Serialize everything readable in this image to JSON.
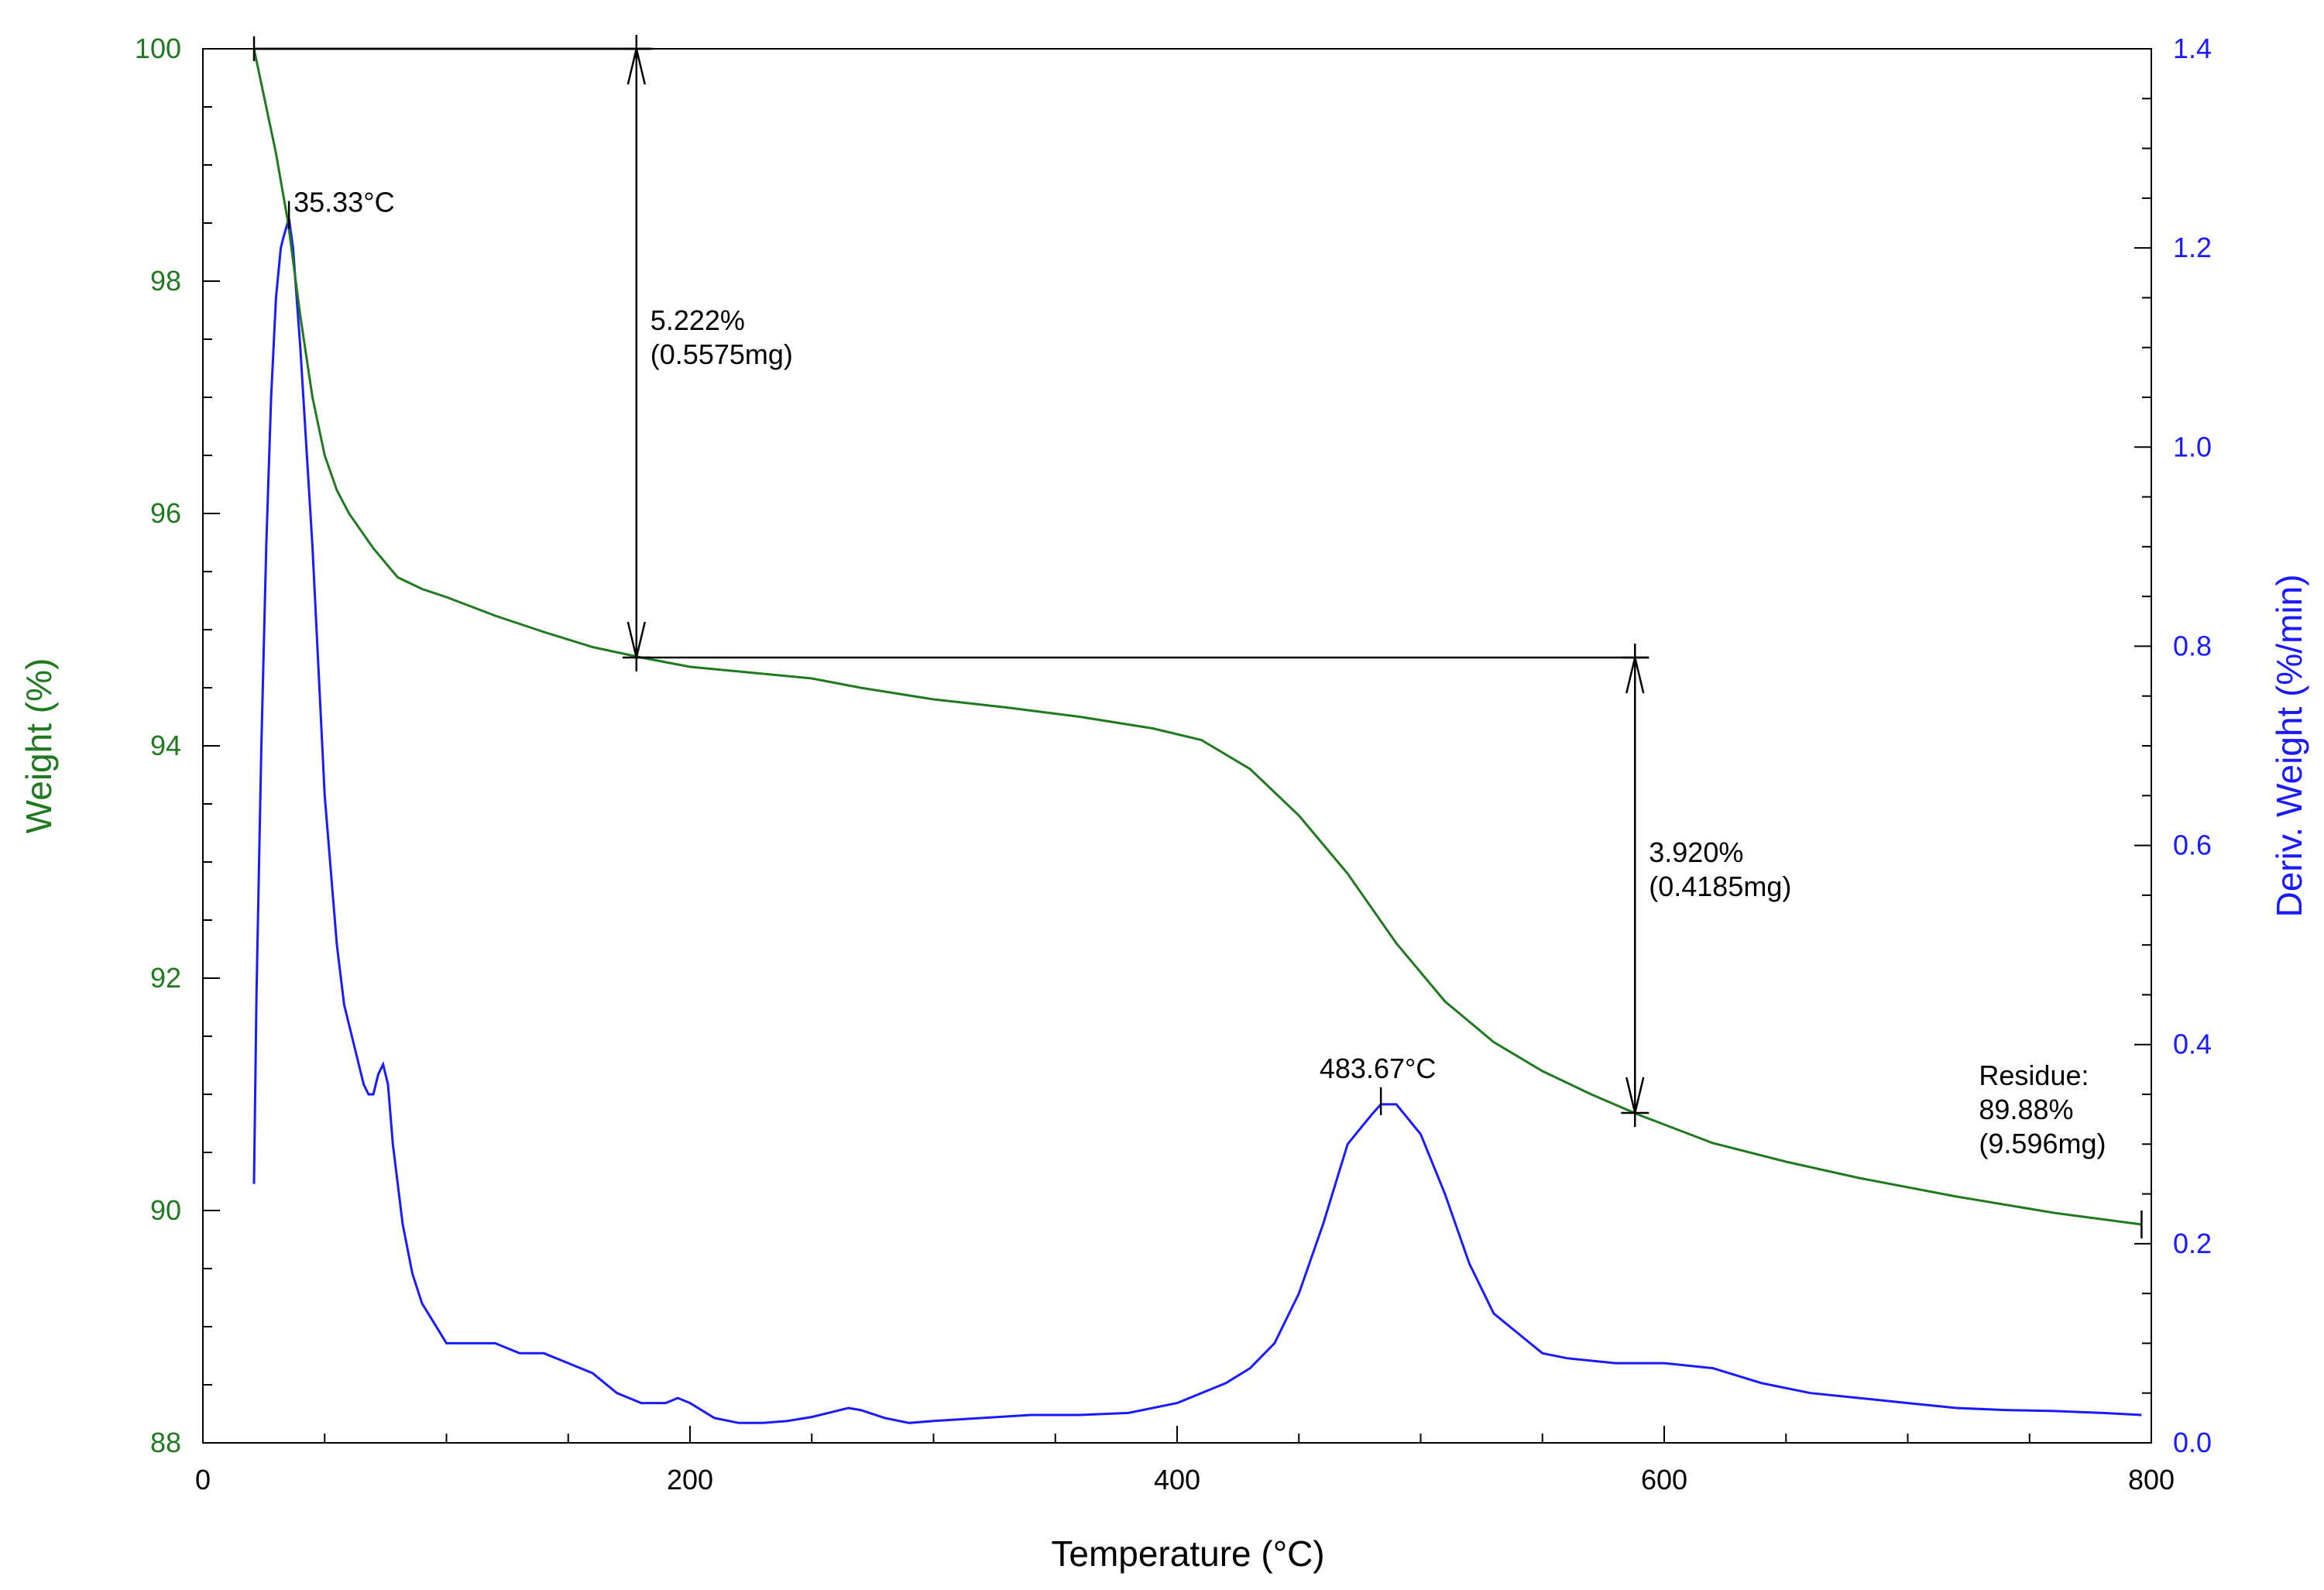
{
  "chart_data": {
    "type": "line",
    "title": "",
    "xlabel": "Temperature (°C)",
    "ylabel_left": "Weight (%)",
    "ylabel_right": "Deriv. Weight (%/min)",
    "xlim": [
      0,
      800
    ],
    "ylim_left": [
      88,
      100
    ],
    "ylim_right": [
      0.0,
      1.4
    ],
    "x_ticks": [
      "0",
      "200",
      "400",
      "600",
      "800"
    ],
    "left_ticks": [
      "88",
      "90",
      "92",
      "94",
      "96",
      "98",
      "100"
    ],
    "right_ticks": [
      "0.0",
      "0.2",
      "0.4",
      "0.6",
      "0.8",
      "1.0",
      "1.2",
      "1.4"
    ],
    "grid": false,
    "colors": {
      "weight": "#1f7a1f",
      "deriv": "#1a1aff",
      "axis": "#000000"
    },
    "series": [
      {
        "name": "Weight (%)",
        "axis": "left",
        "x": [
          21,
          25,
          30,
          35,
          40,
          45,
          50,
          55,
          60,
          70,
          80,
          90,
          100,
          120,
          140,
          160,
          180,
          200,
          220,
          250,
          270,
          300,
          330,
          360,
          390,
          410,
          430,
          450,
          470,
          490,
          510,
          530,
          550,
          570,
          590,
          620,
          650,
          680,
          720,
          760,
          796
        ],
        "values": [
          100.0,
          99.6,
          99.1,
          98.5,
          97.7,
          97.0,
          96.5,
          96.2,
          96.0,
          95.7,
          95.45,
          95.35,
          95.28,
          95.12,
          94.98,
          94.85,
          94.76,
          94.68,
          94.64,
          94.58,
          94.5,
          94.4,
          94.33,
          94.25,
          94.15,
          94.05,
          93.8,
          93.4,
          92.9,
          92.3,
          91.8,
          91.45,
          91.2,
          91.0,
          90.82,
          90.58,
          90.42,
          90.28,
          90.12,
          89.98,
          89.88
        ]
      },
      {
        "name": "Deriv. Weight (%/min)",
        "axis": "right",
        "x": [
          21,
          22,
          24,
          26,
          28,
          30,
          32,
          33,
          35.33,
          37,
          40,
          45,
          50,
          55,
          58,
          62,
          66,
          68,
          70,
          72,
          74,
          76,
          78,
          82,
          86,
          90,
          95,
          100,
          110,
          120,
          130,
          140,
          150,
          160,
          170,
          180,
          190,
          195,
          200,
          210,
          220,
          230,
          240,
          250,
          260,
          265,
          270,
          280,
          290,
          300,
          320,
          340,
          360,
          380,
          400,
          410,
          420,
          430,
          440,
          450,
          460,
          470,
          480,
          483.67,
          490,
          500,
          510,
          520,
          530,
          540,
          550,
          560,
          580,
          600,
          620,
          640,
          660,
          680,
          700,
          720,
          740,
          760,
          780,
          796
        ],
        "values": [
          0.26,
          0.45,
          0.7,
          0.9,
          1.05,
          1.15,
          1.2,
          1.21,
          1.23,
          1.2,
          1.1,
          0.9,
          0.65,
          0.5,
          0.44,
          0.4,
          0.36,
          0.35,
          0.35,
          0.37,
          0.38,
          0.36,
          0.3,
          0.22,
          0.17,
          0.14,
          0.12,
          0.1,
          0.1,
          0.1,
          0.09,
          0.09,
          0.08,
          0.07,
          0.05,
          0.04,
          0.04,
          0.045,
          0.04,
          0.025,
          0.02,
          0.02,
          0.022,
          0.026,
          0.032,
          0.035,
          0.033,
          0.025,
          0.02,
          0.022,
          0.025,
          0.028,
          0.028,
          0.03,
          0.04,
          0.05,
          0.06,
          0.075,
          0.1,
          0.15,
          0.22,
          0.3,
          0.33,
          0.34,
          0.34,
          0.31,
          0.25,
          0.18,
          0.13,
          0.11,
          0.09,
          0.085,
          0.08,
          0.08,
          0.075,
          0.06,
          0.05,
          0.045,
          0.04,
          0.035,
          0.033,
          0.032,
          0.03,
          0.028
        ]
      }
    ],
    "peaks": [
      {
        "label": "35.33°C",
        "x": 35.33,
        "y_right": 1.23
      },
      {
        "label": "483.67°C",
        "x": 483.67,
        "y_right": 0.34
      }
    ],
    "steps": [
      {
        "line1": "5.222%",
        "line2": "(0.5575mg)",
        "x": 178,
        "from": 100.0,
        "to": 94.76
      },
      {
        "line1": "3.920%",
        "line2": "(0.4185mg)",
        "x": 588,
        "from": 94.76,
        "to": 90.84
      }
    ],
    "residue": {
      "line1": "Residue:",
      "line2": "89.88%",
      "line3": "(9.596mg)",
      "x": 796,
      "y": 89.88
    }
  }
}
